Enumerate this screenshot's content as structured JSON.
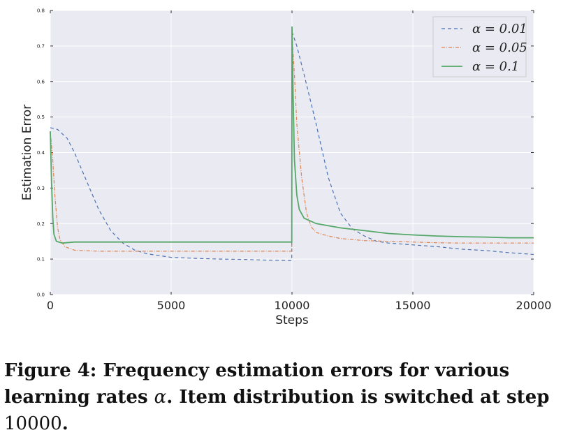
{
  "colors": {
    "alpha_001": "#4c72b0",
    "alpha_005": "#dd8452",
    "alpha_01": "#55a868",
    "plot_bg": "#eaeaf2",
    "grid": "#ffffff"
  },
  "chart_data": {
    "type": "line",
    "xlabel": "Steps",
    "ylabel": "Estimation Error",
    "xlim": [
      0,
      20000
    ],
    "ylim": [
      0.0,
      0.8
    ],
    "x_ticks": [
      "0",
      "5000",
      "10000",
      "15000",
      "20000"
    ],
    "y_ticks": [
      "0.0",
      "0.1",
      "0.2",
      "0.3",
      "0.4",
      "0.5",
      "0.6",
      "0.7",
      "0.8"
    ],
    "grid": true,
    "legend_position": "top-right",
    "series": [
      {
        "name": "α = 0.01",
        "style": "dashed",
        "color": "#4c72b0",
        "points": [
          [
            0,
            0.47
          ],
          [
            300,
            0.465
          ],
          [
            700,
            0.44
          ],
          [
            1000,
            0.4
          ],
          [
            1500,
            0.32
          ],
          [
            2000,
            0.24
          ],
          [
            2500,
            0.18
          ],
          [
            3000,
            0.145
          ],
          [
            3500,
            0.125
          ],
          [
            4000,
            0.115
          ],
          [
            5000,
            0.105
          ],
          [
            6000,
            0.102
          ],
          [
            7000,
            0.1
          ],
          [
            8000,
            0.099
          ],
          [
            9000,
            0.097
          ],
          [
            9990,
            0.096
          ],
          [
            10000,
            0.74
          ],
          [
            10200,
            0.7
          ],
          [
            10500,
            0.62
          ],
          [
            11000,
            0.48
          ],
          [
            11500,
            0.33
          ],
          [
            12000,
            0.23
          ],
          [
            12500,
            0.185
          ],
          [
            13000,
            0.165
          ],
          [
            13500,
            0.15
          ],
          [
            14000,
            0.145
          ],
          [
            15000,
            0.14
          ],
          [
            16000,
            0.135
          ],
          [
            17000,
            0.128
          ],
          [
            18000,
            0.124
          ],
          [
            19000,
            0.118
          ],
          [
            20000,
            0.113
          ]
        ]
      },
      {
        "name": "α = 0.05",
        "style": "dashdot",
        "color": "#dd8452",
        "points": [
          [
            0,
            0.46
          ],
          [
            100,
            0.38
          ],
          [
            200,
            0.27
          ],
          [
            300,
            0.19
          ],
          [
            400,
            0.155
          ],
          [
            600,
            0.135
          ],
          [
            1000,
            0.125
          ],
          [
            2000,
            0.122
          ],
          [
            3000,
            0.122
          ],
          [
            4000,
            0.122
          ],
          [
            5000,
            0.122
          ],
          [
            6000,
            0.122
          ],
          [
            7000,
            0.122
          ],
          [
            8000,
            0.122
          ],
          [
            9000,
            0.122
          ],
          [
            9990,
            0.122
          ],
          [
            10000,
            0.73
          ],
          [
            10100,
            0.62
          ],
          [
            10200,
            0.48
          ],
          [
            10400,
            0.33
          ],
          [
            10600,
            0.23
          ],
          [
            10800,
            0.19
          ],
          [
            11000,
            0.175
          ],
          [
            11500,
            0.165
          ],
          [
            12000,
            0.158
          ],
          [
            13000,
            0.152
          ],
          [
            14000,
            0.15
          ],
          [
            15000,
            0.148
          ],
          [
            16000,
            0.146
          ],
          [
            17000,
            0.145
          ],
          [
            18000,
            0.145
          ],
          [
            19000,
            0.145
          ],
          [
            20000,
            0.145
          ]
        ]
      },
      {
        "name": "α = 0.1",
        "style": "solid",
        "color": "#55a868",
        "points": [
          [
            0,
            0.46
          ],
          [
            50,
            0.32
          ],
          [
            100,
            0.22
          ],
          [
            150,
            0.17
          ],
          [
            250,
            0.15
          ],
          [
            500,
            0.145
          ],
          [
            1000,
            0.148
          ],
          [
            2000,
            0.148
          ],
          [
            3000,
            0.148
          ],
          [
            4000,
            0.148
          ],
          [
            5000,
            0.148
          ],
          [
            6000,
            0.148
          ],
          [
            7000,
            0.148
          ],
          [
            8000,
            0.148
          ],
          [
            9000,
            0.148
          ],
          [
            9990,
            0.148
          ],
          [
            10000,
            0.755
          ],
          [
            10050,
            0.55
          ],
          [
            10100,
            0.38
          ],
          [
            10200,
            0.28
          ],
          [
            10300,
            0.24
          ],
          [
            10500,
            0.215
          ],
          [
            11000,
            0.2
          ],
          [
            12000,
            0.188
          ],
          [
            13000,
            0.18
          ],
          [
            14000,
            0.172
          ],
          [
            15000,
            0.168
          ],
          [
            16000,
            0.165
          ],
          [
            17000,
            0.163
          ],
          [
            18000,
            0.162
          ],
          [
            19000,
            0.16
          ],
          [
            20000,
            0.16
          ]
        ]
      }
    ],
    "legend": [
      "α = 0.01",
      "α = 0.05",
      "α = 0.1"
    ]
  },
  "caption": {
    "part1": "Figure 4: Frequency estimation errors for various learning rates ",
    "alpha": "α",
    "part2": ". Item distribution is switched at step ",
    "step": "10000",
    "part3": "."
  }
}
